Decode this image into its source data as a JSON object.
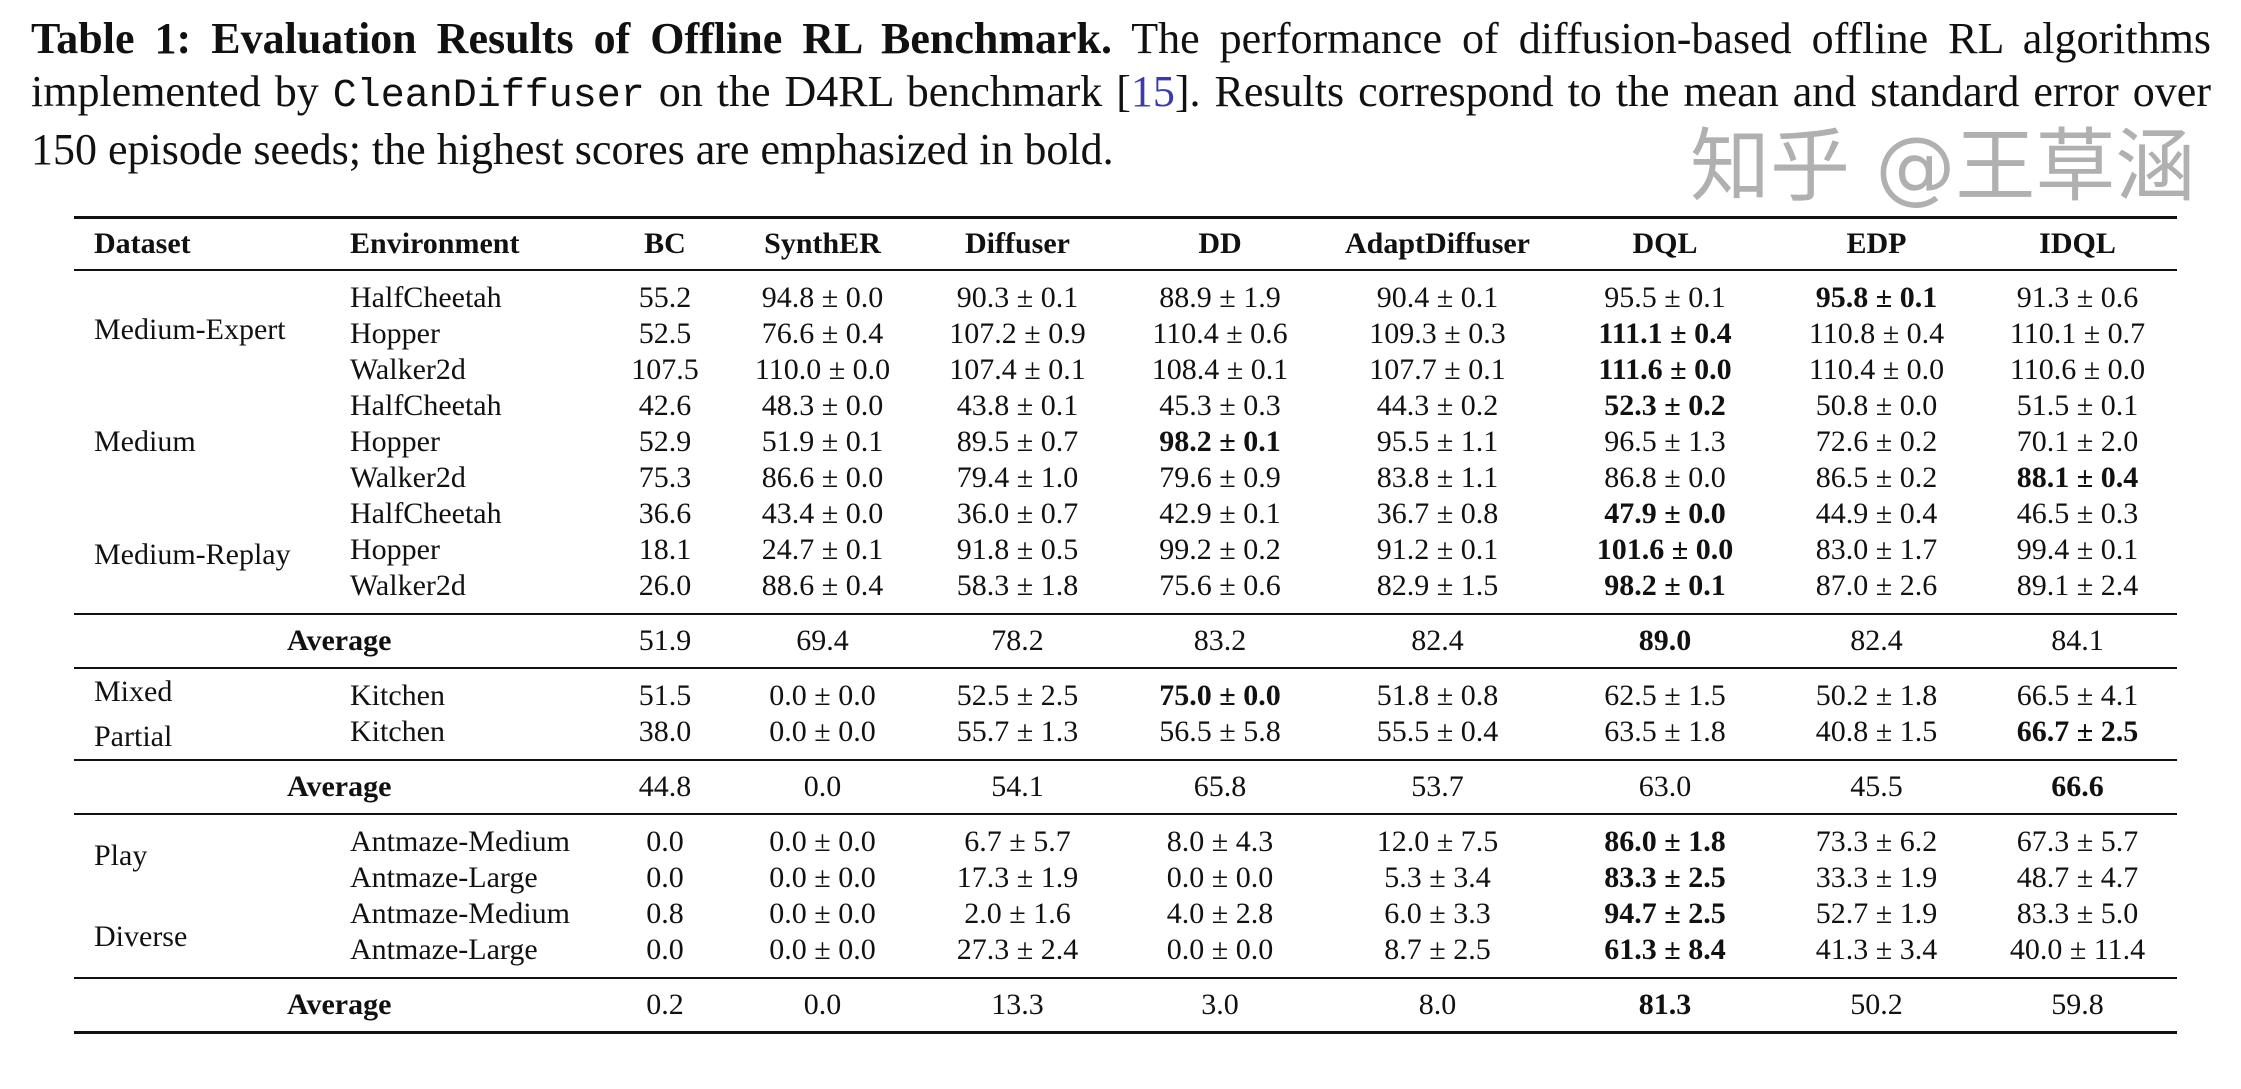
{
  "caption": {
    "label": "Table 1:",
    "title": "Evaluation Results of Offline RL Benchmark.",
    "text1": "The performance of diffusion-based offline RL algorithms implemented by",
    "code": "CleanDiffuser",
    "text2": "on the D4RL benchmark [",
    "ref": "15",
    "text3": "]. Results correspond to the mean and standard error over 150 episode seeds; the highest scores are emphasized in bold."
  },
  "table": {
    "headers": [
      "Dataset",
      "Environment",
      "BC",
      "SynthER",
      "Diffuser",
      "DD",
      "AdaptDiffuser",
      "DQL",
      "EDP",
      "IDQL"
    ],
    "sections": [
      {
        "groups": [
          {
            "datasets": [
              "Medium-Expert"
            ],
            "rows": [
              {
                "env": "HalfCheetah",
                "values": [
                  "55.2",
                  "94.8 ± 0.0",
                  "90.3 ± 0.1",
                  "88.9 ± 1.9",
                  "90.4 ± 0.1",
                  "95.5 ± 0.1",
                  "95.8 ± 0.1",
                  "91.3 ± 0.6"
                ],
                "bold": [
                  6
                ]
              },
              {
                "env": "Hopper",
                "values": [
                  "52.5",
                  "76.6 ± 0.4",
                  "107.2 ± 0.9",
                  "110.4 ± 0.6",
                  "109.3 ± 0.3",
                  "111.1 ± 0.4",
                  "110.8 ± 0.4",
                  "110.1 ± 0.7"
                ],
                "bold": [
                  5
                ]
              },
              {
                "env": "Walker2d",
                "values": [
                  "107.5",
                  "110.0 ± 0.0",
                  "107.4 ± 0.1",
                  "108.4 ± 0.1",
                  "107.7 ± 0.1",
                  "111.6 ± 0.0",
                  "110.4 ± 0.0",
                  "110.6 ± 0.0"
                ],
                "bold": [
                  5
                ]
              }
            ]
          },
          {
            "datasets": [
              "Medium"
            ],
            "rows": [
              {
                "env": "HalfCheetah",
                "values": [
                  "42.6",
                  "48.3 ± 0.0",
                  "43.8 ± 0.1",
                  "45.3 ± 0.3",
                  "44.3 ± 0.2",
                  "52.3 ± 0.2",
                  "50.8 ± 0.0",
                  "51.5 ± 0.1"
                ],
                "bold": [
                  5
                ]
              },
              {
                "env": "Hopper",
                "values": [
                  "52.9",
                  "51.9 ± 0.1",
                  "89.5 ± 0.7",
                  "98.2 ± 0.1",
                  "95.5 ± 1.1",
                  "96.5 ± 1.3",
                  "72.6 ± 0.2",
                  "70.1 ± 2.0"
                ],
                "bold": [
                  3
                ]
              },
              {
                "env": "Walker2d",
                "values": [
                  "75.3",
                  "86.6 ± 0.0",
                  "79.4 ± 1.0",
                  "79.6 ± 0.9",
                  "83.8 ± 1.1",
                  "86.8 ± 0.0",
                  "86.5 ± 0.2",
                  "88.1 ± 0.4"
                ],
                "bold": [
                  7
                ]
              }
            ]
          },
          {
            "datasets": [
              "Medium-Replay"
            ],
            "rows": [
              {
                "env": "HalfCheetah",
                "values": [
                  "36.6",
                  "43.4 ± 0.0",
                  "36.0 ± 0.7",
                  "42.9 ± 0.1",
                  "36.7 ± 0.8",
                  "47.9 ± 0.0",
                  "44.9 ± 0.4",
                  "46.5 ± 0.3"
                ],
                "bold": [
                  5
                ]
              },
              {
                "env": "Hopper",
                "values": [
                  "18.1",
                  "24.7 ± 0.1",
                  "91.8 ± 0.5",
                  "99.2 ± 0.2",
                  "91.2 ± 0.1",
                  "101.6 ± 0.0",
                  "83.0 ± 1.7",
                  "99.4 ± 0.1"
                ],
                "bold": [
                  5
                ]
              },
              {
                "env": "Walker2d",
                "values": [
                  "26.0",
                  "88.6 ± 0.4",
                  "58.3 ± 1.8",
                  "75.6 ± 0.6",
                  "82.9 ± 1.5",
                  "98.2 ± 0.1",
                  "87.0 ± 2.6",
                  "89.1 ± 2.4"
                ],
                "bold": [
                  5
                ]
              }
            ]
          }
        ],
        "average": {
          "label": "Average",
          "values": [
            "51.9",
            "69.4",
            "78.2",
            "83.2",
            "82.4",
            "89.0",
            "82.4",
            "84.1"
          ],
          "bold": [
            5
          ]
        }
      },
      {
        "groups": [
          {
            "datasets": [
              "Mixed"
            ],
            "rows": [
              {
                "env": "Kitchen",
                "values": [
                  "51.5",
                  "0.0 ± 0.0",
                  "52.5 ± 2.5",
                  "75.0 ± 0.0",
                  "51.8 ± 0.8",
                  "62.5 ± 1.5",
                  "50.2 ± 1.8",
                  "66.5 ± 4.1"
                ],
                "bold": [
                  3
                ]
              }
            ]
          },
          {
            "datasets": [
              "Partial"
            ],
            "rows": [
              {
                "env": "Kitchen",
                "values": [
                  "38.0",
                  "0.0 ± 0.0",
                  "55.7 ± 1.3",
                  "56.5 ± 5.8",
                  "55.5 ± 0.4",
                  "63.5 ± 1.8",
                  "40.8 ± 1.5",
                  "66.7 ± 2.5"
                ],
                "bold": [
                  7
                ]
              }
            ]
          }
        ],
        "average": {
          "label": "Average",
          "values": [
            "44.8",
            "0.0",
            "54.1",
            "65.8",
            "53.7",
            "63.0",
            "45.5",
            "66.6"
          ],
          "bold": [
            7
          ]
        }
      },
      {
        "groups": [
          {
            "datasets": [
              "Play"
            ],
            "rows": [
              {
                "env": "Antmaze-Medium",
                "values": [
                  "0.0",
                  "0.0 ± 0.0",
                  "6.7 ± 5.7",
                  "8.0 ± 4.3",
                  "12.0 ± 7.5",
                  "86.0 ± 1.8",
                  "73.3 ± 6.2",
                  "67.3 ± 5.7"
                ],
                "bold": [
                  5
                ]
              },
              {
                "env": "Antmaze-Large",
                "values": [
                  "0.0",
                  "0.0 ± 0.0",
                  "17.3 ± 1.9",
                  "0.0 ± 0.0",
                  "5.3 ± 3.4",
                  "83.3 ± 2.5",
                  "33.3 ± 1.9",
                  "48.7 ± 4.7"
                ],
                "bold": [
                  5
                ]
              }
            ]
          },
          {
            "datasets": [
              "Diverse"
            ],
            "rows": [
              {
                "env": "Antmaze-Medium",
                "values": [
                  "0.8",
                  "0.0 ± 0.0",
                  "2.0 ± 1.6",
                  "4.0 ± 2.8",
                  "6.0 ± 3.3",
                  "94.7 ± 2.5",
                  "52.7 ± 1.9",
                  "83.3 ± 5.0"
                ],
                "bold": [
                  5
                ]
              },
              {
                "env": "Antmaze-Large",
                "values": [
                  "0.0",
                  "0.0 ± 0.0",
                  "27.3 ± 2.4",
                  "0.0 ± 0.0",
                  "8.7 ± 2.5",
                  "61.3 ± 8.4",
                  "41.3 ± 3.4",
                  "40.0 ± 11.4"
                ],
                "bold": [
                  5
                ]
              }
            ]
          }
        ],
        "average": {
          "label": "Average",
          "values": [
            "0.2",
            "0.0",
            "13.3",
            "3.0",
            "8.0",
            "81.3",
            "50.2",
            "59.8"
          ],
          "bold": [
            5
          ]
        }
      }
    ]
  },
  "watermark": "知乎 @王草涵"
}
